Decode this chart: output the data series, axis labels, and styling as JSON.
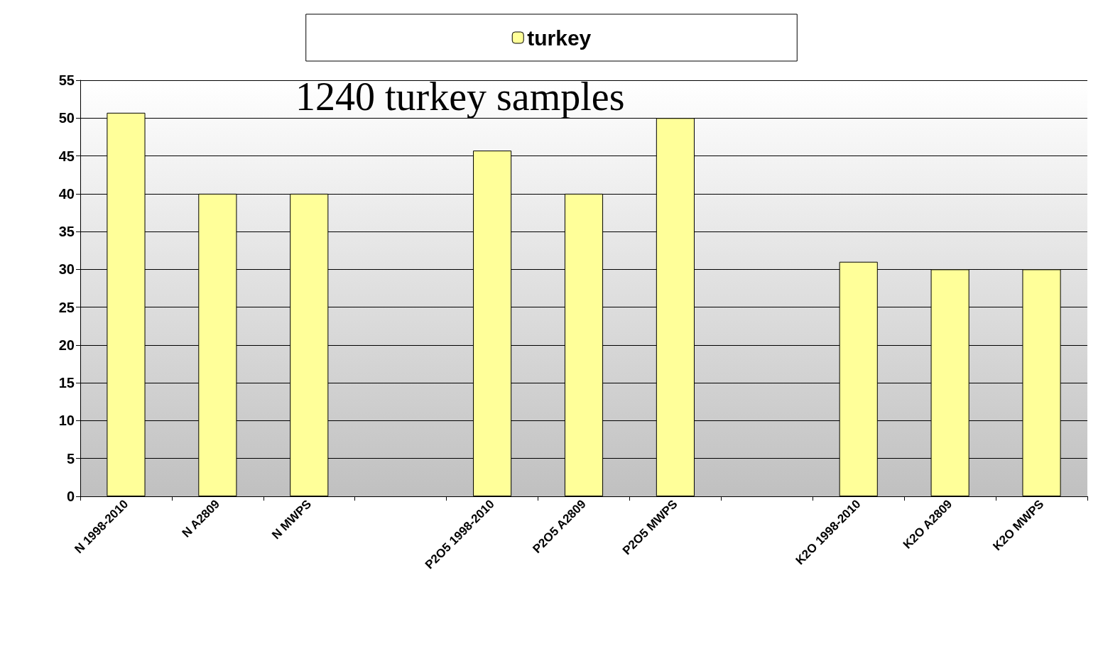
{
  "chart_data": {
    "type": "bar",
    "categories": [
      "N 1998-2010",
      "N A2809",
      "N MWPS",
      null,
      "P2O5 1998-2010",
      "P2O5 A2809",
      "P2O5 MWPS",
      null,
      "K2O 1998-2010",
      "K2O A2809",
      "K2O MWPS"
    ],
    "series": [
      {
        "name": "turkey",
        "color": "#ffff99",
        "values": [
          50.7,
          40,
          40,
          null,
          45.7,
          40,
          50,
          null,
          31,
          30,
          30
        ]
      }
    ],
    "ylim": [
      0,
      55
    ],
    "yticks": [
      0,
      5,
      10,
      15,
      20,
      25,
      30,
      35,
      40,
      45,
      50,
      55
    ],
    "grid": "y",
    "legend": "top",
    "annotations": [
      "1240 turkey samples"
    ]
  }
}
